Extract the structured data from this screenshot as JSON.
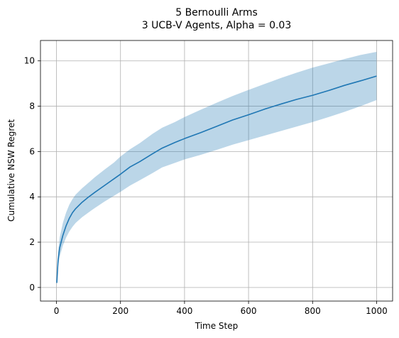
{
  "chart_data": {
    "type": "line",
    "title": "5 Bernoulli Arms",
    "subtitle": "3 UCB-V Agents, Alpha = 0.03",
    "xlabel": "Time Step",
    "ylabel": "Cumulative NSW Regret",
    "xlim": [
      -50,
      1050
    ],
    "ylim": [
      -0.6,
      10.9
    ],
    "xticks": [
      0,
      200,
      400,
      600,
      800,
      1000
    ],
    "yticks": [
      0,
      2,
      4,
      6,
      8,
      10
    ],
    "grid": true,
    "colors": {
      "line": "#1f77b4",
      "band": "#1f77b4"
    },
    "series": [
      {
        "x": [
          1,
          5,
          10,
          20,
          30,
          40,
          50,
          60,
          80,
          100,
          120,
          150,
          180,
          200,
          230,
          260,
          300,
          330,
          370,
          400,
          450,
          500,
          550,
          600,
          650,
          700,
          750,
          800,
          850,
          900,
          950,
          1000
        ],
        "y": [
          0.2,
          1.2,
          1.75,
          2.3,
          2.72,
          3.05,
          3.3,
          3.48,
          3.76,
          3.99,
          4.2,
          4.5,
          4.8,
          5.0,
          5.32,
          5.55,
          5.9,
          6.15,
          6.4,
          6.57,
          6.83,
          7.11,
          7.39,
          7.62,
          7.87,
          8.09,
          8.3,
          8.48,
          8.69,
          8.92,
          9.12,
          9.33
        ],
        "lower": [
          0.15,
          0.9,
          1.35,
          1.85,
          2.2,
          2.47,
          2.68,
          2.85,
          3.1,
          3.31,
          3.51,
          3.79,
          4.05,
          4.22,
          4.5,
          4.73,
          5.05,
          5.3,
          5.5,
          5.65,
          5.85,
          6.07,
          6.3,
          6.5,
          6.7,
          6.9,
          7.1,
          7.3,
          7.52,
          7.75,
          8.0,
          8.27
        ],
        "upper": [
          0.25,
          1.55,
          2.2,
          2.85,
          3.3,
          3.65,
          3.9,
          4.1,
          4.38,
          4.62,
          4.87,
          5.2,
          5.52,
          5.78,
          6.1,
          6.37,
          6.78,
          7.05,
          7.3,
          7.52,
          7.84,
          8.15,
          8.45,
          8.72,
          8.98,
          9.24,
          9.48,
          9.7,
          9.89,
          10.08,
          10.26,
          10.4
        ]
      }
    ]
  }
}
